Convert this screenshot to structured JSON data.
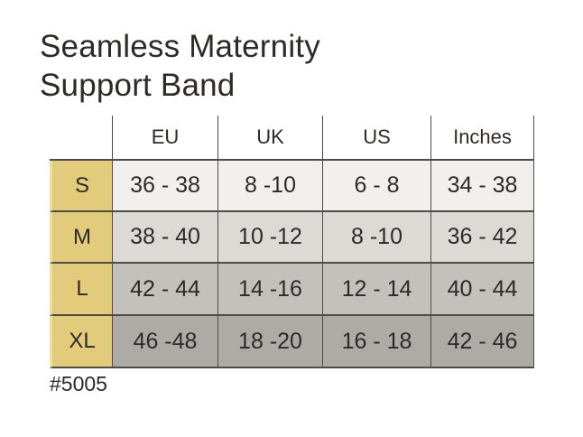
{
  "title": "Seamless Maternity Support Band",
  "footer": {
    "product_code": "#5005"
  },
  "chart_data": {
    "type": "table",
    "title": "Seamless Maternity Support Band",
    "columns": [
      "EU",
      "UK",
      "US",
      "Inches"
    ],
    "row_labels": [
      "S",
      "M",
      "L",
      "XL"
    ],
    "rows": [
      {
        "size": "S",
        "cells": [
          "36 - 38",
          "8 -10",
          "6 - 8",
          "34 - 38"
        ]
      },
      {
        "size": "M",
        "cells": [
          "38 - 40",
          "10 -12",
          "8 -10",
          "36 - 42"
        ]
      },
      {
        "size": "L",
        "cells": [
          "42 - 44",
          "14 -16",
          "12 - 14",
          "40 - 44"
        ]
      },
      {
        "size": "XL",
        "cells": [
          "46 -48",
          "18 -20",
          "16 - 18",
          "42 - 46"
        ]
      }
    ],
    "notes": "#5005",
    "layout": {
      "grid": "on",
      "header_position": "top",
      "label_column_position": "left"
    }
  },
  "colors": {
    "size_column_bg": "#e3cb7c",
    "size_column_highlight": "#efdf9e",
    "row_s_bg": "#f2f0ee",
    "row_m_bg": "#ddd9d5",
    "row_l_bg": "#c4c0bc",
    "row_xl_bg": "#aeaaa6",
    "grid_line": "#4f4b48",
    "text": "#2d2a28",
    "page_bg": "#ffffff"
  }
}
